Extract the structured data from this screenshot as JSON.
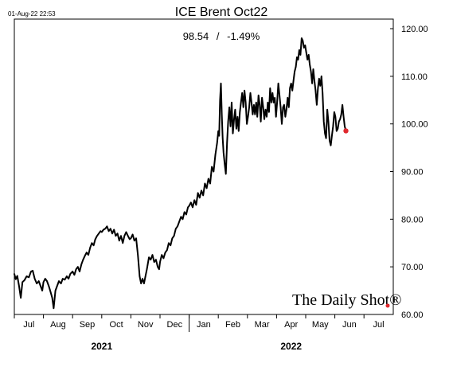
{
  "header": {
    "timestamp": "01-Aug-22 22:53",
    "title": "ICE Brent Oct22",
    "price": "98.54",
    "separator": "/",
    "change": "-1.49%"
  },
  "watermark": "The Daily Shot®",
  "chart_data": {
    "type": "line",
    "title": "ICE Brent Oct22",
    "y_axis": {
      "position": "right",
      "ylim": [
        60,
        120
      ],
      "ticks": [
        "120.00",
        "110.00",
        "100.00",
        "90.00",
        "80.00",
        "70.00",
        "60.00"
      ]
    },
    "x_axis": {
      "months": [
        "Jul",
        "Aug",
        "Sep",
        "Oct",
        "Nov",
        "Dec",
        "Jan",
        "Feb",
        "Mar",
        "Apr",
        "May",
        "Jun",
        "Jul"
      ],
      "years": [
        {
          "label": "2021",
          "start_month": 0,
          "end_month": 5
        },
        {
          "label": "2022",
          "start_month": 6,
          "end_month": 12
        }
      ]
    },
    "grid": false,
    "series": [
      {
        "color": "#000000",
        "points": [
          [
            0.0,
            68.5
          ],
          [
            0.05,
            67.4
          ],
          [
            0.1,
            68.1
          ],
          [
            0.16,
            66.0
          ],
          [
            0.22,
            63.5
          ],
          [
            0.28,
            66.8
          ],
          [
            0.35,
            67.2
          ],
          [
            0.42,
            68.0
          ],
          [
            0.5,
            67.8
          ],
          [
            0.57,
            69.0
          ],
          [
            0.63,
            69.2
          ],
          [
            0.7,
            67.5
          ],
          [
            0.77,
            66.5
          ],
          [
            0.84,
            67.0
          ],
          [
            0.9,
            66.0
          ],
          [
            0.96,
            65.0
          ],
          [
            1.0,
            66.8
          ],
          [
            1.06,
            67.5
          ],
          [
            1.12,
            67.0
          ],
          [
            1.18,
            66.0
          ],
          [
            1.24,
            64.8
          ],
          [
            1.3,
            63.5
          ],
          [
            1.35,
            61.3
          ],
          [
            1.41,
            65.0
          ],
          [
            1.47,
            66.0
          ],
          [
            1.53,
            67.0
          ],
          [
            1.6,
            66.5
          ],
          [
            1.66,
            67.5
          ],
          [
            1.73,
            67.3
          ],
          [
            1.8,
            68.0
          ],
          [
            1.86,
            67.5
          ],
          [
            1.92,
            68.5
          ],
          [
            2.0,
            69.0
          ],
          [
            2.06,
            68.3
          ],
          [
            2.12,
            69.5
          ],
          [
            2.18,
            70.0
          ],
          [
            2.24,
            69.0
          ],
          [
            2.3,
            70.5
          ],
          [
            2.36,
            71.5
          ],
          [
            2.42,
            72.3
          ],
          [
            2.48,
            73.0
          ],
          [
            2.54,
            72.5
          ],
          [
            2.6,
            74.0
          ],
          [
            2.66,
            75.0
          ],
          [
            2.72,
            74.5
          ],
          [
            2.78,
            75.8
          ],
          [
            2.84,
            76.5
          ],
          [
            2.9,
            77.0
          ],
          [
            2.96,
            77.5
          ],
          [
            3.0,
            77.3
          ],
          [
            3.06,
            77.8
          ],
          [
            3.12,
            78.0
          ],
          [
            3.18,
            78.5
          ],
          [
            3.24,
            77.5
          ],
          [
            3.3,
            78.0
          ],
          [
            3.36,
            77.0
          ],
          [
            3.42,
            77.8
          ],
          [
            3.48,
            76.5
          ],
          [
            3.54,
            77.0
          ],
          [
            3.6,
            75.5
          ],
          [
            3.66,
            76.5
          ],
          [
            3.72,
            75.0
          ],
          [
            3.78,
            76.5
          ],
          [
            3.84,
            77.3
          ],
          [
            3.9,
            76.5
          ],
          [
            3.96,
            75.8
          ],
          [
            4.0,
            76.0
          ],
          [
            4.06,
            76.8
          ],
          [
            4.12,
            75.5
          ],
          [
            4.18,
            76.0
          ],
          [
            4.24,
            72.5
          ],
          [
            4.3,
            68.0
          ],
          [
            4.35,
            66.5
          ],
          [
            4.4,
            67.5
          ],
          [
            4.45,
            66.5
          ],
          [
            4.5,
            68.0
          ],
          [
            4.55,
            69.5
          ],
          [
            4.62,
            72.0
          ],
          [
            4.68,
            71.5
          ],
          [
            4.74,
            72.5
          ],
          [
            4.8,
            71.0
          ],
          [
            4.86,
            71.5
          ],
          [
            4.92,
            70.0
          ],
          [
            4.97,
            69.5
          ],
          [
            5.0,
            71.0
          ],
          [
            5.06,
            72.5
          ],
          [
            5.12,
            71.8
          ],
          [
            5.18,
            73.0
          ],
          [
            5.24,
            73.5
          ],
          [
            5.3,
            75.0
          ],
          [
            5.36,
            74.5
          ],
          [
            5.42,
            76.0
          ],
          [
            5.48,
            76.5
          ],
          [
            5.54,
            78.0
          ],
          [
            5.6,
            78.5
          ],
          [
            5.66,
            79.5
          ],
          [
            5.72,
            80.5
          ],
          [
            5.78,
            80.0
          ],
          [
            5.84,
            81.5
          ],
          [
            5.9,
            81.0
          ],
          [
            5.96,
            82.5
          ],
          [
            6.0,
            82.8
          ],
          [
            6.06,
            83.5
          ],
          [
            6.12,
            82.5
          ],
          [
            6.18,
            84.0
          ],
          [
            6.24,
            83.0
          ],
          [
            6.3,
            85.5
          ],
          [
            6.36,
            84.5
          ],
          [
            6.42,
            86.0
          ],
          [
            6.48,
            85.0
          ],
          [
            6.54,
            87.5
          ],
          [
            6.6,
            86.5
          ],
          [
            6.66,
            88.5
          ],
          [
            6.72,
            87.5
          ],
          [
            6.78,
            91.0
          ],
          [
            6.84,
            90.0
          ],
          [
            6.9,
            93.5
          ],
          [
            6.96,
            96.0
          ],
          [
            7.0,
            98.5
          ],
          [
            7.03,
            97.5
          ],
          [
            7.06,
            105.0
          ],
          [
            7.09,
            108.5
          ],
          [
            7.12,
            102.0
          ],
          [
            7.15,
            97.0
          ],
          [
            7.18,
            94.0
          ],
          [
            7.22,
            91.5
          ],
          [
            7.26,
            89.5
          ],
          [
            7.3,
            96.0
          ],
          [
            7.34,
            100.5
          ],
          [
            7.38,
            103.5
          ],
          [
            7.42,
            99.5
          ],
          [
            7.46,
            104.5
          ],
          [
            7.5,
            98.0
          ],
          [
            7.54,
            101.0
          ],
          [
            7.58,
            103.0
          ],
          [
            7.62,
            99.0
          ],
          [
            7.66,
            101.5
          ],
          [
            7.7,
            98.5
          ],
          [
            7.74,
            102.5
          ],
          [
            7.78,
            104.5
          ],
          [
            7.82,
            106.5
          ],
          [
            7.86,
            103.5
          ],
          [
            7.9,
            107.0
          ],
          [
            7.94,
            104.5
          ],
          [
            7.98,
            100.0
          ],
          [
            8.02,
            101.5
          ],
          [
            8.06,
            103.5
          ],
          [
            8.1,
            106.5
          ],
          [
            8.14,
            104.5
          ],
          [
            8.18,
            102.0
          ],
          [
            8.22,
            104.0
          ],
          [
            8.26,
            102.0
          ],
          [
            8.3,
            104.5
          ],
          [
            8.34,
            101.5
          ],
          [
            8.38,
            106.0
          ],
          [
            8.42,
            104.0
          ],
          [
            8.46,
            100.5
          ],
          [
            8.5,
            105.5
          ],
          [
            8.54,
            103.5
          ],
          [
            8.58,
            101.0
          ],
          [
            8.62,
            103.0
          ],
          [
            8.66,
            101.5
          ],
          [
            8.7,
            104.5
          ],
          [
            8.74,
            102.5
          ],
          [
            8.78,
            107.5
          ],
          [
            8.82,
            104.5
          ],
          [
            8.86,
            106.5
          ],
          [
            8.9,
            104.5
          ],
          [
            8.94,
            105.5
          ],
          [
            8.98,
            101.5
          ],
          [
            9.02,
            104.5
          ],
          [
            9.06,
            108.5
          ],
          [
            9.1,
            106.0
          ],
          [
            9.14,
            103.5
          ],
          [
            9.18,
            100.0
          ],
          [
            9.22,
            103.5
          ],
          [
            9.26,
            104.0
          ],
          [
            9.3,
            101.5
          ],
          [
            9.34,
            103.0
          ],
          [
            9.38,
            105.5
          ],
          [
            9.42,
            103.5
          ],
          [
            9.46,
            107.5
          ],
          [
            9.5,
            108.5
          ],
          [
            9.54,
            107.0
          ],
          [
            9.58,
            109.0
          ],
          [
            9.62,
            111.0
          ],
          [
            9.66,
            112.0
          ],
          [
            9.7,
            114.0
          ],
          [
            9.74,
            113.5
          ],
          [
            9.78,
            115.5
          ],
          [
            9.82,
            114.5
          ],
          [
            9.86,
            118.0
          ],
          [
            9.9,
            117.5
          ],
          [
            9.94,
            116.0
          ],
          [
            9.98,
            116.5
          ],
          [
            10.02,
            115.0
          ],
          [
            10.06,
            113.5
          ],
          [
            10.1,
            114.5
          ],
          [
            10.14,
            112.5
          ],
          [
            10.18,
            111.0
          ],
          [
            10.22,
            108.5
          ],
          [
            10.26,
            111.5
          ],
          [
            10.3,
            109.0
          ],
          [
            10.34,
            107.0
          ],
          [
            10.38,
            104.0
          ],
          [
            10.42,
            107.5
          ],
          [
            10.46,
            109.5
          ],
          [
            10.5,
            108.0
          ],
          [
            10.54,
            110.0
          ],
          [
            10.58,
            106.5
          ],
          [
            10.62,
            100.5
          ],
          [
            10.66,
            98.0
          ],
          [
            10.7,
            97.0
          ],
          [
            10.74,
            103.0
          ],
          [
            10.78,
            100.5
          ],
          [
            10.82,
            96.5
          ],
          [
            10.86,
            95.5
          ],
          [
            10.9,
            97.5
          ],
          [
            10.94,
            99.5
          ],
          [
            10.98,
            102.5
          ],
          [
            11.02,
            101.5
          ],
          [
            11.06,
            98.5
          ],
          [
            11.1,
            99.0
          ],
          [
            11.14,
            100.5
          ],
          [
            11.18,
            101.0
          ],
          [
            11.22,
            102.0
          ],
          [
            11.26,
            104.0
          ],
          [
            11.3,
            101.5
          ],
          [
            11.34,
            99.5
          ],
          [
            11.38,
            98.54
          ]
        ]
      }
    ],
    "last_point_color": "#e0282e"
  }
}
